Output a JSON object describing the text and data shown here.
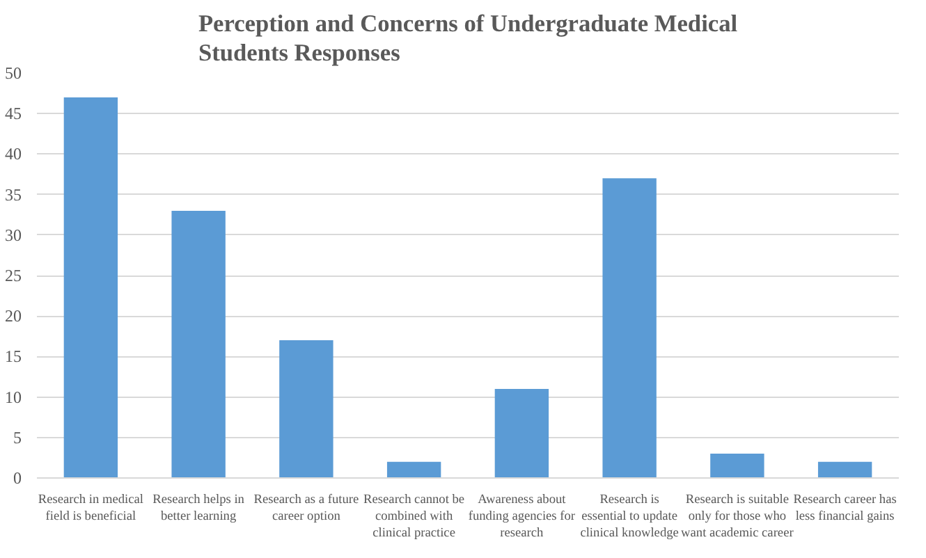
{
  "chart_data": {
    "type": "bar",
    "title": "Perception and Concerns of Undergraduate Medical Students Responses",
    "categories": [
      "Research in medical field is beneficial",
      "Research helps in better learning",
      "Research as a future career option",
      "Research cannot be combined with clinical practice",
      "Awareness about funding agencies for research",
      "Research is essential to update clinical knowledge",
      "Research is suitable only for those who want academic career",
      "Research career has less financial gains"
    ],
    "values": [
      47,
      33,
      17,
      2,
      11,
      37,
      3,
      2
    ],
    "color": "#5b9bd5",
    "ylim": [
      0,
      50
    ],
    "yticks": [
      0,
      5,
      10,
      15,
      20,
      25,
      30,
      35,
      40,
      45,
      50
    ],
    "grid": "y"
  }
}
